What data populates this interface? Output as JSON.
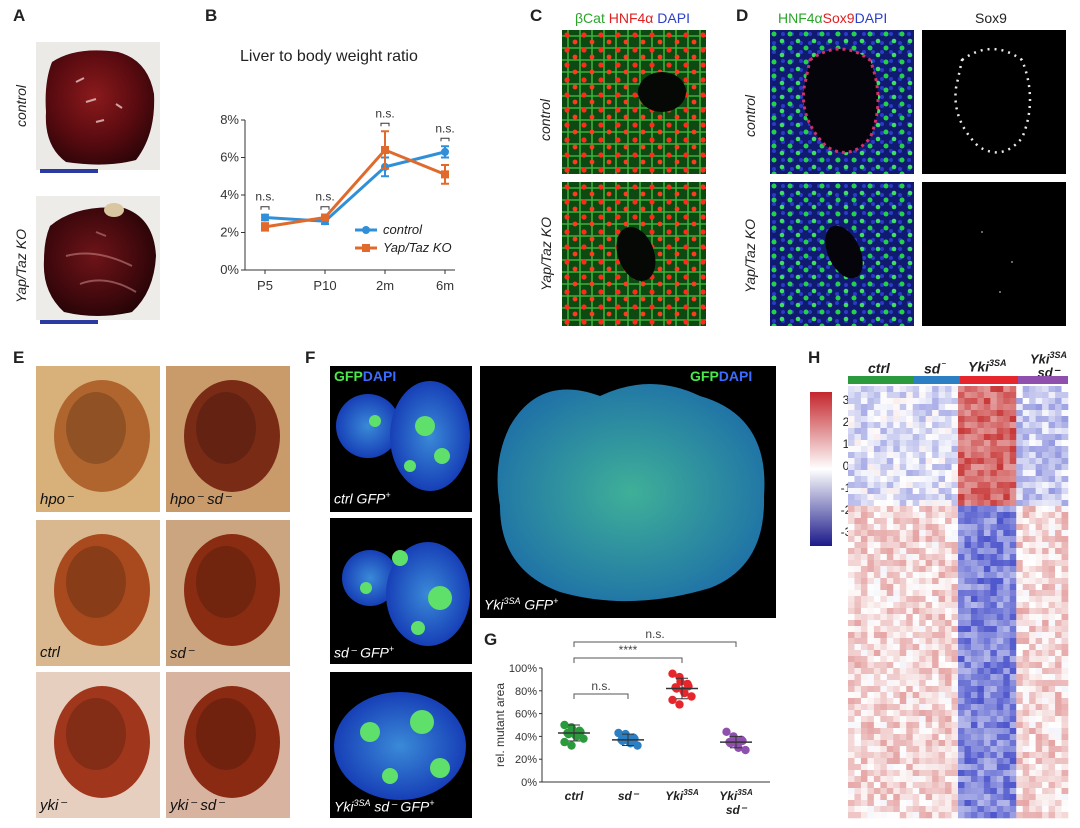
{
  "panels": {
    "A": "A",
    "B": "B",
    "C": "C",
    "D": "D",
    "E": "E",
    "F": "F",
    "G": "G",
    "H": "H"
  },
  "panel_a": {
    "control": "control",
    "ko": "Yap/Taz KO"
  },
  "panel_b": {
    "title": "Liver to body weight ratio",
    "legend_control": "control",
    "legend_ko": "Yap/Taz KO",
    "ns": "n.s.",
    "colors": {
      "control": "#2f8fd8",
      "ko": "#e06a2c"
    }
  },
  "chart_data": [
    {
      "type": "line",
      "title": "Liver to body weight ratio",
      "categories": [
        "P5",
        "P10",
        "2m",
        "6m"
      ],
      "ylim": [
        0,
        8
      ],
      "yticks": [
        "0%",
        "2%",
        "4%",
        "6%",
        "8%"
      ],
      "series": [
        {
          "name": "control",
          "values": [
            2.8,
            2.6,
            5.5,
            6.3
          ],
          "errors": [
            0.15,
            0.15,
            0.5,
            0.3
          ]
        },
        {
          "name": "Yap/Taz KO",
          "values": [
            2.3,
            2.8,
            6.4,
            5.1
          ],
          "errors": [
            0.2,
            0.15,
            1.0,
            0.5
          ]
        }
      ],
      "annotations": [
        "n.s.",
        "n.s.",
        "n.s.",
        "n.s."
      ]
    },
    {
      "type": "scatter",
      "ylabel": "rel. mutant area",
      "categories": [
        "ctrl",
        "sd⁻",
        "Yki3SA",
        "Yki3SA sd⁻"
      ],
      "ylim": [
        0,
        100
      ],
      "yticks": [
        "0%",
        "20%",
        "40%",
        "60%",
        "80%",
        "100%"
      ],
      "means": [
        43,
        37,
        82,
        35
      ],
      "sd": [
        7,
        5,
        9,
        5
      ],
      "points": [
        [
          50,
          48,
          46,
          45,
          44,
          43,
          42,
          41,
          40,
          38,
          35,
          32
        ],
        [
          43,
          42,
          40,
          39,
          38,
          37,
          36,
          35,
          34,
          32
        ],
        [
          95,
          92,
          88,
          86,
          84,
          83,
          82,
          80,
          78,
          75,
          72,
          68
        ],
        [
          44,
          40,
          38,
          37,
          36,
          35,
          34,
          32,
          30,
          28
        ]
      ],
      "comparisons": [
        {
          "label": "n.s.",
          "from": "ctrl",
          "to": "Yki3SA sd⁻"
        },
        {
          "label": "****",
          "from": "ctrl",
          "to": "Yki3SA"
        },
        {
          "label": "n.s.",
          "from": "ctrl",
          "to": "sd⁻"
        }
      ]
    },
    {
      "type": "heatmap",
      "groups": [
        "ctrl",
        "sd⁻",
        "Yki3SA",
        "Yki3SA sd⁻"
      ],
      "group_colors": [
        "#2a9a3c",
        "#2b7fc2",
        "#e5262c",
        "#8f4fad"
      ],
      "colorbar_ticks": [
        "3",
        "2",
        "1",
        "0",
        "-1",
        "-2",
        "-3"
      ]
    }
  ],
  "panel_c": {
    "chans": [
      {
        "t": "βCat",
        "c": "#2aa52a"
      },
      {
        "t": "HNF4α",
        "c": "#e02020"
      },
      {
        "t": "DAPI",
        "c": "#2b3fc9"
      }
    ],
    "row1": "control",
    "row2": "Yap/Taz KO"
  },
  "panel_d": {
    "chans": [
      {
        "t": "HNF4α",
        "c": "#2aa52a"
      },
      {
        "t": "Sox9",
        "c": "#e02020"
      },
      {
        "t": "DAPI",
        "c": "#2b3fc9"
      }
    ],
    "sox9": "Sox9",
    "row1": "control",
    "row2": "Yap/Taz KO"
  },
  "panel_e": {
    "labels": [
      "hpo⁻",
      "hpo⁻ sd⁻",
      "ctrl",
      "sd⁻",
      "yki⁻",
      "yki⁻ sd⁻"
    ]
  },
  "panel_f": {
    "gfp": "GFP",
    "dapi": "DAPI",
    "labels": [
      "ctrl GFP",
      "sd⁻ GFP",
      "Yki",
      "3SA",
      " sd⁻ GFP",
      "Yki",
      "3SA",
      " GFP"
    ],
    "plus": "+"
  },
  "panel_h": {
    "groups": [
      "ctrl",
      "sd",
      "⁻",
      "Yki",
      "3SA",
      "Yki",
      "3SA",
      "sd⁻"
    ]
  }
}
